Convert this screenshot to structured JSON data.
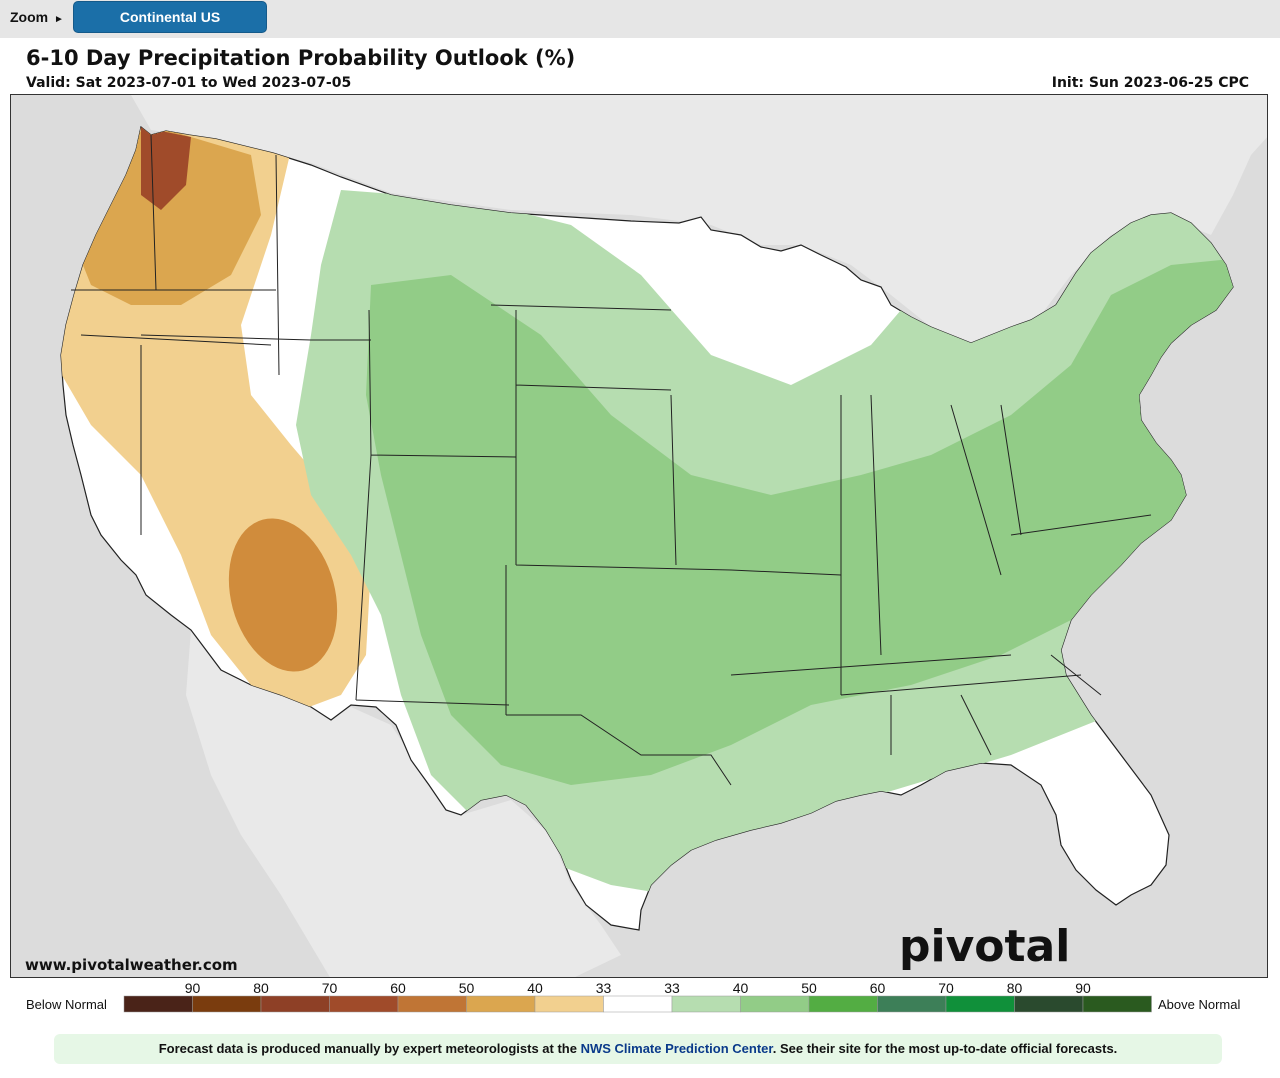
{
  "toolbar": {
    "zoom_label": "Zoom",
    "zoom_arrow": "►",
    "region_button": "Continental US"
  },
  "header": {
    "title": "6-10 Day Precipitation Probability Outlook (%)",
    "valid": "Valid: Sat 2023-07-01 to Wed 2023-07-05",
    "init": "Init: Sun 2023-06-25 CPC"
  },
  "map": {
    "watermark_url": "www.pivotalweather.com",
    "logo_text": "pivotal weather",
    "colors": {
      "ocean": "#dcdcdc",
      "land": "#ffffff",
      "below_33": "#f2d08f",
      "below_40": "#dba64f",
      "below_50": "#d08c3c",
      "below_60": "#a04b2a",
      "above_33": "#b6ddb0",
      "above_40": "#92cc87",
      "above_50": "#6fb863"
    }
  },
  "legend": {
    "below_label": "Below Normal",
    "above_label": "Above Normal",
    "ticks": [
      "90",
      "80",
      "70",
      "60",
      "50",
      "40",
      "33",
      "33",
      "40",
      "50",
      "60",
      "70",
      "80",
      "90"
    ],
    "swatches": [
      "#4a2318",
      "#7a3c0e",
      "#8e4026",
      "#a04b2a",
      "#c07535",
      "#dba64f",
      "#f2d08f",
      "#ffffff",
      "#b6ddb0",
      "#92cc87",
      "#53ad43",
      "#3d7f58",
      "#10903a",
      "#2a4a2e",
      "#2a5a1f"
    ]
  },
  "footer": {
    "text_before": "Forecast data is produced manually by expert meteorologists at the ",
    "link": "NWS Climate Prediction Center",
    "text_after": ". See their site for the most up-to-date official forecasts."
  }
}
